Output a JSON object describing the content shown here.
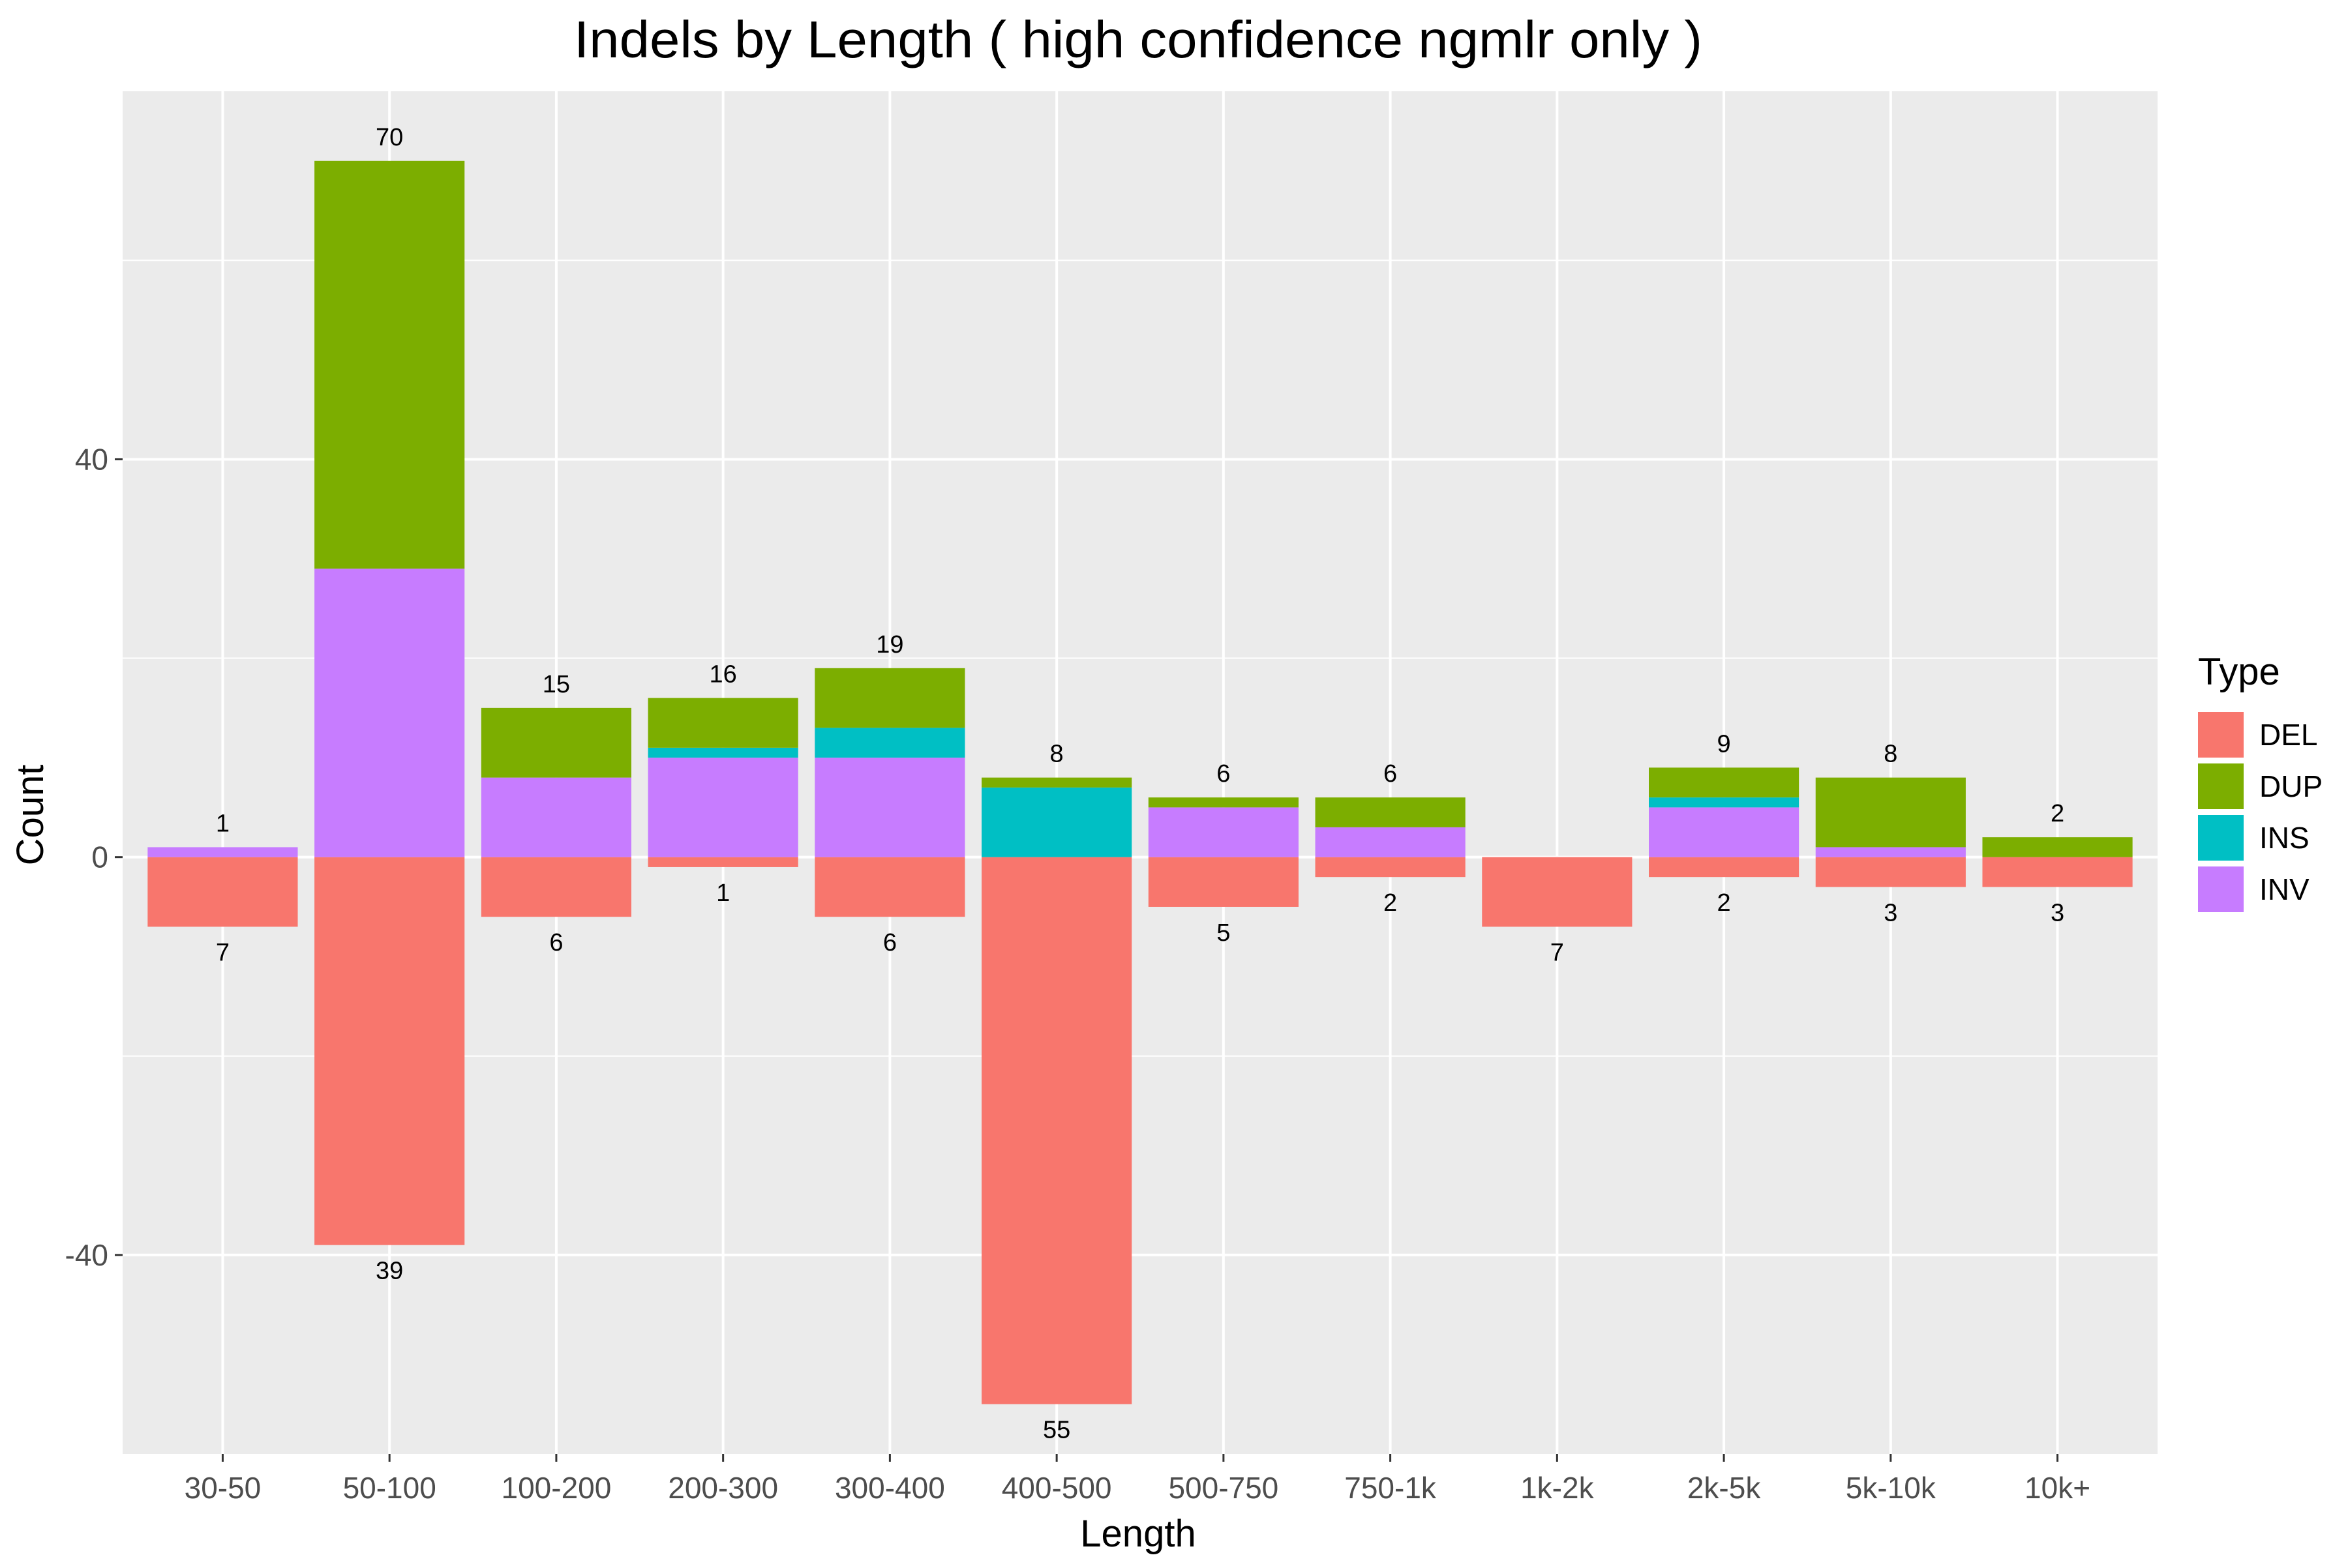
{
  "chart_data": {
    "type": "bar",
    "title": "Indels by Length ( high confidence ngmlr only )",
    "xlabel": "Length",
    "ylabel": "Count",
    "categories": [
      "30-50",
      "50-100",
      "100-200",
      "200-300",
      "300-400",
      "400-500",
      "500-750",
      "750-1k",
      "1k-2k",
      "2k-5k",
      "5k-10k",
      "10k+"
    ],
    "ylim": [
      -60,
      77
    ],
    "y_ticks": [
      -40,
      0,
      40
    ],
    "grid": true,
    "legend": {
      "title": "Type",
      "placement": "right"
    },
    "series": [
      {
        "name": "DEL",
        "color": "#F8766D",
        "values": [
          -7,
          -39,
          -6,
          -1,
          -6,
          -55,
          -5,
          -2,
          -7,
          -2,
          -3,
          -3
        ]
      },
      {
        "name": "DUP",
        "color": "#7CAE00",
        "values": [
          0,
          41,
          7,
          5,
          6,
          1,
          1,
          3,
          0,
          3,
          7,
          2
        ]
      },
      {
        "name": "INS",
        "color": "#00BFC4",
        "values": [
          0,
          0,
          0,
          1,
          3,
          7,
          0,
          0,
          0,
          1,
          0,
          0
        ]
      },
      {
        "name": "INV",
        "color": "#C77CFF",
        "values": [
          1,
          29,
          8,
          10,
          10,
          0,
          5,
          3,
          0,
          5,
          1,
          0
        ]
      }
    ],
    "stack_order_above_zero": [
      "INV",
      "INS",
      "DUP"
    ],
    "top_labels": [
      "1",
      "70",
      "15",
      "16",
      "19",
      "8",
      "6",
      "6",
      "",
      "9",
      "8",
      "2"
    ],
    "bottom_labels": [
      "7",
      "39",
      "6",
      "1",
      "6",
      "55",
      "5",
      "2",
      "7",
      "2",
      "3",
      "3"
    ]
  }
}
